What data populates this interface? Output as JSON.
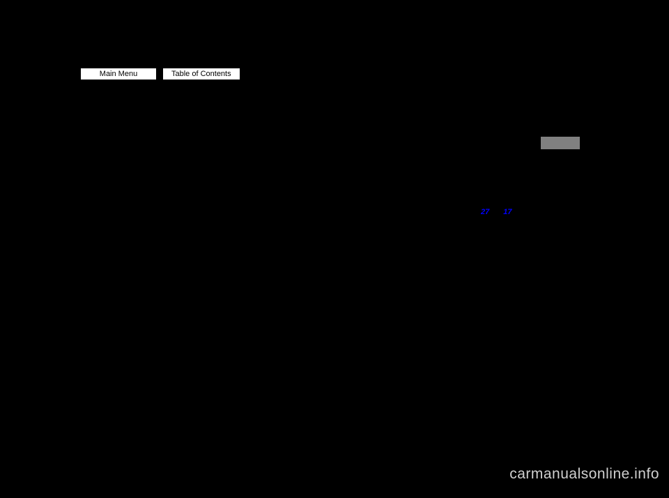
{
  "nav": {
    "main_menu_label": "Main Menu",
    "toc_label": "Table of Contents"
  },
  "links": {
    "link1": "27",
    "link2": "17"
  },
  "watermark": "carmanualsonline.info",
  "colors": {
    "background": "#000000",
    "button_bg": "#ffffff",
    "button_text": "#000000",
    "badge_bg": "#808080",
    "link_color": "#0000ff",
    "watermark_color": "#d0d0d0"
  }
}
